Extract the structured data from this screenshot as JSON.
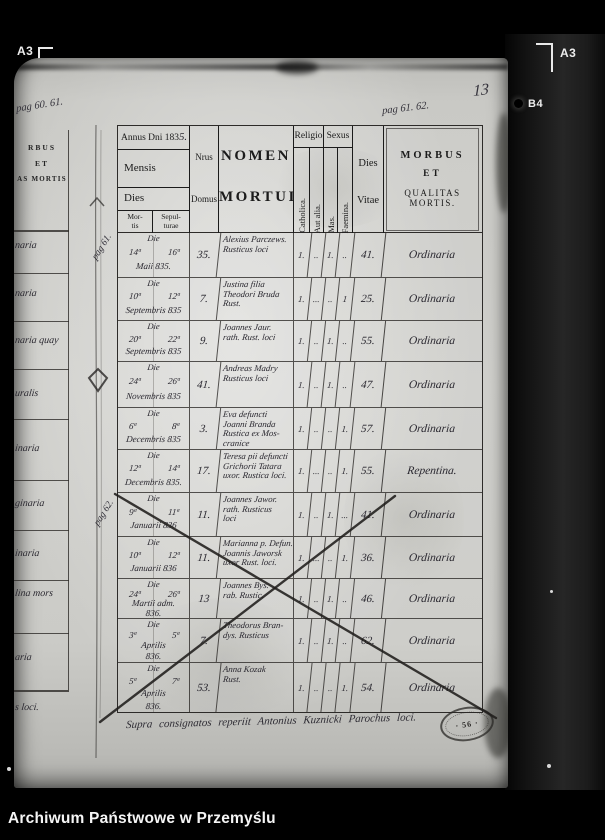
{
  "frame_marks": {
    "top_left": "A3",
    "top_right": "A3",
    "right": "B4",
    "page_number_hand": "13"
  },
  "margin_notes": {
    "top_left": "pag 60. 61.",
    "top_right": "pag 61. 62.",
    "gutter_upper": "pag 61.",
    "gutter_lower": "pag 62."
  },
  "left_page_fragment": {
    "header": [
      "RBUS",
      "ET",
      "AS MORTIS"
    ],
    "entries": [
      "naria",
      "naria",
      "naria quay",
      "uralis",
      "inaria",
      "ginaria",
      "inaria",
      "lina mors",
      "aria",
      "s loci."
    ]
  },
  "table": {
    "header": {
      "annus_print": "Annus Dni 183",
      "annus_hand": "5.",
      "mensis": "Mensis",
      "dies": "Dies",
      "mortis_l1": "Mor-",
      "mortis_l2": "tis",
      "sepult_l1": "Sepul-",
      "sepult_l2": "turae",
      "nrus": "Nrus",
      "domus": "Domus",
      "nomen_l1": "NOMEN",
      "nomen_l2": "MORTUI",
      "religio": "Religio",
      "catholica": "Catholica.",
      "aut_alia": "Aut alia.",
      "sexus": "Sexus",
      "mas": "Mas.",
      "faemina": "Faemina.",
      "vitae_l1": "Dies",
      "vitae_l2": "Vitae",
      "morbus_l1": "MORBUS",
      "morbus_l2": "ET",
      "morbus_l3": "QUALITAS MORTIS."
    },
    "rows": [
      {
        "die": "Die",
        "d1": "14ª",
        "d2": "16ª",
        "month": "Maii 835.",
        "year": "",
        "domus": "35.",
        "n1": "Alexius Parczews.",
        "n2": "Rusticus loci",
        "n3": "",
        "n4": "",
        "cath": "1.",
        "aut": "..",
        "mas": "1.",
        "fem": "..",
        "vitae": "41.",
        "morbus": "Ordinaria"
      },
      {
        "die": "Die",
        "d1": "10ª",
        "d2": "12ª",
        "month": "Septembris 835",
        "year": "",
        "domus": "7.",
        "n1": "Justina filia",
        "n2": "Theodori Bruda",
        "n3": "Rust.",
        "n4": "",
        "cath": "1.",
        "aut": "...",
        "mas": "..",
        "fem": "1",
        "vitae": "25.",
        "morbus": "Ordinaria"
      },
      {
        "die": "Die",
        "d1": "20ª",
        "d2": "22ª",
        "month": "Septembris 835",
        "year": "",
        "domus": "9.",
        "n1": "Joannes Jaur.",
        "n2": "rath. Rust. loci",
        "n3": "",
        "n4": "",
        "cath": "1.",
        "aut": "..",
        "mas": "1.",
        "fem": "..",
        "vitae": "55.",
        "morbus": "Ordinaria"
      },
      {
        "die": "Die",
        "d1": "24ª",
        "d2": "26ª",
        "month": "Novembris 835",
        "year": "",
        "domus": "41.",
        "n1": "Andreas Madry",
        "n2": "Rusticus loci",
        "n3": "",
        "n4": "",
        "cath": "1.",
        "aut": "..",
        "mas": "1.",
        "fem": "..",
        "vitae": "47.",
        "morbus": "Ordinaria"
      },
      {
        "die": "Die",
        "d1": "6ª",
        "d2": "8ª",
        "month": "Decembris 835",
        "year": "",
        "domus": "3.",
        "n1": "Eva defuncti",
        "n2": "Joanni Branda",
        "n3": "Rustica ex Mos-",
        "n4": "cranice",
        "cath": "1.",
        "aut": "..",
        "mas": "..",
        "fem": "1.",
        "vitae": "57.",
        "morbus": "Ordinaria"
      },
      {
        "die": "Die",
        "d1": "12ª",
        "d2": "14ª",
        "month": "Decembris 835.",
        "year": "",
        "domus": "17.",
        "n1": "Teresa pii defuncti",
        "n2": "Grichorii Tatara",
        "n3": "uxor. Rustica loci.",
        "n4": "",
        "cath": "1.",
        "aut": "...",
        "mas": "..",
        "fem": "1.",
        "vitae": "55.",
        "morbus": "Repentina."
      },
      {
        "die": "Die",
        "d1": "9ª",
        "d2": "11ª",
        "month": "Januarii 836",
        "year": "",
        "domus": "11.",
        "n1": "Joannes Jawor.",
        "n2": "rath. Rusticus",
        "n3": "loci",
        "n4": "",
        "cath": "1.",
        "aut": "..",
        "mas": "1.",
        "fem": "...",
        "vitae": "41.",
        "morbus": "Ordinaria"
      },
      {
        "die": "Die",
        "d1": "10ª",
        "d2": "12ª",
        "month": "Januarii 836",
        "year": "",
        "domus": "11.",
        "n1": "Marianna p. Defun.",
        "n2": "Joannis Jaworsk",
        "n3": "uxor Rust. loci.",
        "n4": "",
        "cath": "1.",
        "aut": "...",
        "mas": "..",
        "fem": "1.",
        "vitae": "36.",
        "morbus": "Ordinaria"
      },
      {
        "die": "Die",
        "d1": "24ª",
        "d2": "26ª",
        "month": "Martii adm.",
        "year": "836.",
        "domus": "13",
        "n1": "Joannes Bys.",
        "n2": "rab. Rustic.",
        "n3": "",
        "n4": "",
        "cath": "1.",
        "aut": "..",
        "mas": "1.",
        "fem": "..",
        "vitae": "46.",
        "morbus": "Ordinaria"
      },
      {
        "die": "Die",
        "d1": "3ª",
        "d2": "5ª",
        "month": "Aprilis",
        "year": "836.",
        "domus": "7.",
        "n1": "Theodorus Bran-",
        "n2": "dys. Rusticus",
        "n3": "",
        "n4": "",
        "cath": "1.",
        "aut": "..",
        "mas": "1.",
        "fem": "..",
        "vitae": "62.",
        "morbus": "Ordinaria"
      },
      {
        "die": "Die",
        "d1": "5ª",
        "d2": "7ª",
        "month": "Aprilis",
        "year": "836.",
        "domus": "53.",
        "n1": "Anna Kozak",
        "n2": "Rust.",
        "n3": "",
        "n4": "",
        "cath": "1.",
        "aut": "..",
        "mas": "..",
        "fem": "1.",
        "vitae": "54.",
        "morbus": "Ordinaria"
      }
    ],
    "footer_note": "Supra consignatos reperiit Antonius Kuznicki Parochus loci.",
    "stamp_text": "· 56 ·"
  },
  "archive_bar": {
    "label": "Archiwum Państwowe w Przemyślu"
  }
}
